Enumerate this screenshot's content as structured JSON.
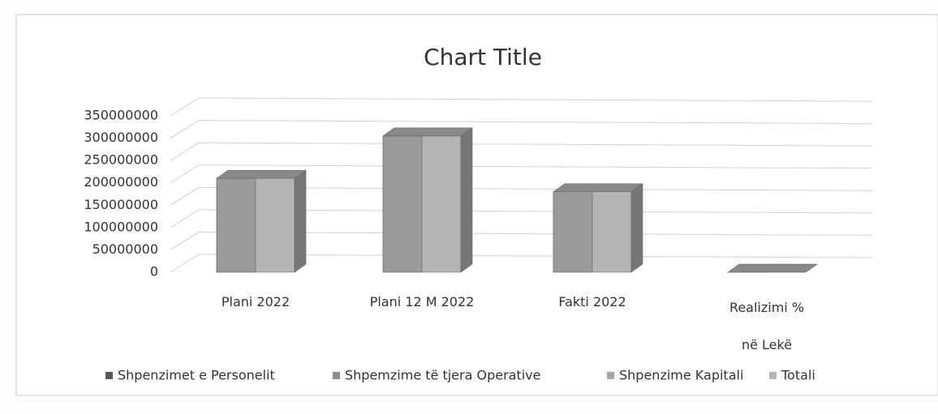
{
  "chart_data": {
    "type": "bar3d",
    "title": "Chart Title",
    "categories": [
      "Plani 2022",
      "Plani 12 M 2022",
      "Fakti 2022",
      "Realizimi % në Lekë"
    ],
    "series": [
      {
        "name": "Shpenzimet e Personelit",
        "color": "#5a5a5a",
        "values": [
          null,
          null,
          null,
          null
        ]
      },
      {
        "name": "Shpemzime të tjera Operative",
        "color": "#8c8c8c",
        "values": [
          null,
          null,
          null,
          null
        ]
      },
      {
        "name": "Shpenzime Kapitali",
        "color": "#a6a6a6",
        "values": [
          null,
          null,
          null,
          null
        ]
      },
      {
        "name": "Totali",
        "color": "#b4b4b4",
        "values": [
          210000000,
          305000000,
          180000000,
          0
        ]
      }
    ],
    "ylim": [
      0,
      350000000
    ],
    "yticks": [
      0,
      50000000,
      100000000,
      150000000,
      200000000,
      250000000,
      300000000,
      350000000
    ],
    "grid": true
  }
}
